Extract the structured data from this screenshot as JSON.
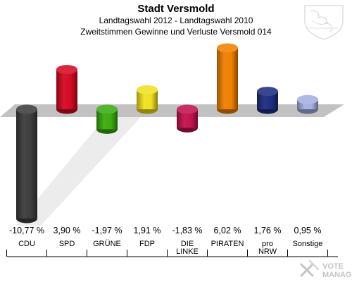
{
  "header": {
    "title": "Stadt Versmold",
    "subtitle1": "Landtagswahl 2012 - Landtagswahl 2010",
    "subtitle2": "Zweitstimmen Gewinne und Verluste Versmold 014"
  },
  "logo": {
    "icon": "coat-of-arms-icon"
  },
  "watermark": {
    "line1": "VOTE",
    "line2": "MANAGER"
  },
  "chart_data": {
    "type": "bar",
    "categories": [
      "CDU",
      "SPD",
      "GRÜNE",
      "FDP",
      "DIE LINKE",
      "PIRATEN",
      "pro NRW",
      "Sonstige"
    ],
    "category_lines": [
      [
        "CDU"
      ],
      [
        "SPD"
      ],
      [
        "GRÜNE"
      ],
      [
        "FDP"
      ],
      [
        "DIE",
        "LINKE"
      ],
      [
        "PIRATEN"
      ],
      [
        "pro",
        "NRW"
      ],
      [
        "Sonstige"
      ]
    ],
    "values": [
      -10.77,
      3.9,
      -1.97,
      1.91,
      -1.83,
      6.02,
      1.76,
      0.95
    ],
    "value_labels": [
      "-10,77 %",
      "3,90 %",
      "-1,97 %",
      "1,91 %",
      "-1,83 %",
      "6,02 %",
      "1,76 %",
      "0,95 %"
    ],
    "colors": [
      "#3d3d3d",
      "#d40a22",
      "#3bab10",
      "#f0e020",
      "#c2124e",
      "#f08000",
      "#1e2e80",
      "#a3b0e0"
    ],
    "ylim": [
      -10.77,
      6.02
    ],
    "baseline": 0,
    "grid": false,
    "legend": "none"
  }
}
